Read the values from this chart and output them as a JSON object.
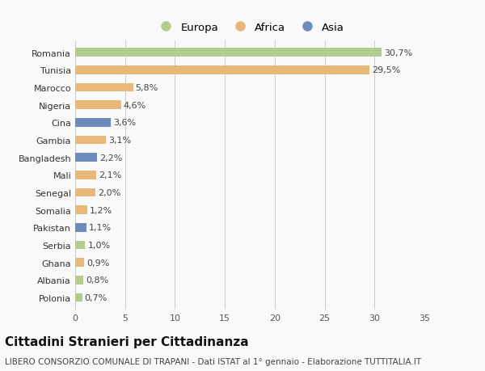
{
  "categories": [
    "Romania",
    "Tunisia",
    "Marocco",
    "Nigeria",
    "Cina",
    "Gambia",
    "Bangladesh",
    "Mali",
    "Senegal",
    "Somalia",
    "Pakistan",
    "Serbia",
    "Ghana",
    "Albania",
    "Polonia"
  ],
  "values": [
    30.7,
    29.5,
    5.8,
    4.6,
    3.6,
    3.1,
    2.2,
    2.1,
    2.0,
    1.2,
    1.1,
    1.0,
    0.9,
    0.8,
    0.7
  ],
  "labels": [
    "30,7%",
    "29,5%",
    "5,8%",
    "4,6%",
    "3,6%",
    "3,1%",
    "2,2%",
    "2,1%",
    "2,0%",
    "1,2%",
    "1,1%",
    "1,0%",
    "0,9%",
    "0,8%",
    "0,7%"
  ],
  "continent": [
    "Europa",
    "Africa",
    "Africa",
    "Africa",
    "Asia",
    "Africa",
    "Asia",
    "Africa",
    "Africa",
    "Africa",
    "Asia",
    "Europa",
    "Africa",
    "Europa",
    "Europa"
  ],
  "colors": {
    "Europa": "#b5cc8e",
    "Africa": "#e8b87a",
    "Asia": "#6b8cba"
  },
  "title": "Cittadini Stranieri per Cittadinanza",
  "subtitle": "LIBERO CONSORZIO COMUNALE DI TRAPANI - Dati ISTAT al 1° gennaio - Elaborazione TUTTITALIA.IT",
  "xlim": [
    0,
    35
  ],
  "xticks": [
    0,
    5,
    10,
    15,
    20,
    25,
    30,
    35
  ],
  "bg_color": "#f9f9f9",
  "grid_color": "#d0d0d0",
  "bar_height": 0.5,
  "label_fontsize": 8,
  "tick_fontsize": 8,
  "title_fontsize": 11,
  "subtitle_fontsize": 7.5
}
